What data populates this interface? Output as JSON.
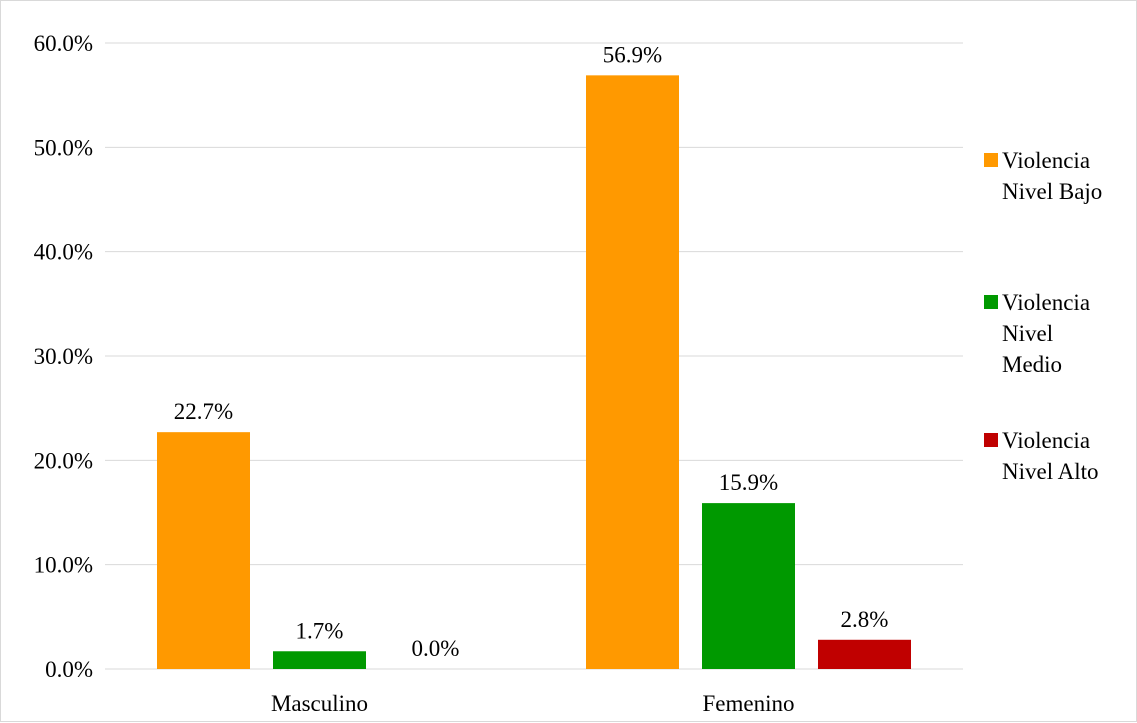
{
  "chart_data": {
    "type": "bar",
    "categories": [
      "Masculino",
      "Femenino"
    ],
    "series": [
      {
        "name": "Violencia Nivel Bajo",
        "values": [
          22.7,
          56.9
        ],
        "labels": [
          "22.7%",
          "56.9%"
        ],
        "color": "#ff9900",
        "legend_lines": [
          "Violencia",
          "Nivel Bajo"
        ]
      },
      {
        "name": "Violencia Nivel Medio",
        "values": [
          1.7,
          15.9
        ],
        "labels": [
          "1.7%",
          "15.9%"
        ],
        "color": "#009900",
        "legend_lines": [
          "Violencia",
          "Nivel",
          "Medio"
        ]
      },
      {
        "name": "Violencia Nivel Alto",
        "values": [
          0.0,
          2.8
        ],
        "labels": [
          "0.0%",
          "2.8%"
        ],
        "color": "#c00000",
        "legend_lines": [
          "Violencia",
          "Nivel Alto"
        ]
      }
    ],
    "y_ticks": [
      "0.0%",
      "10.0%",
      "20.0%",
      "30.0%",
      "40.0%",
      "50.0%",
      "60.0%"
    ],
    "ylim": [
      0,
      60
    ],
    "grid": true,
    "legend_position": "right"
  }
}
